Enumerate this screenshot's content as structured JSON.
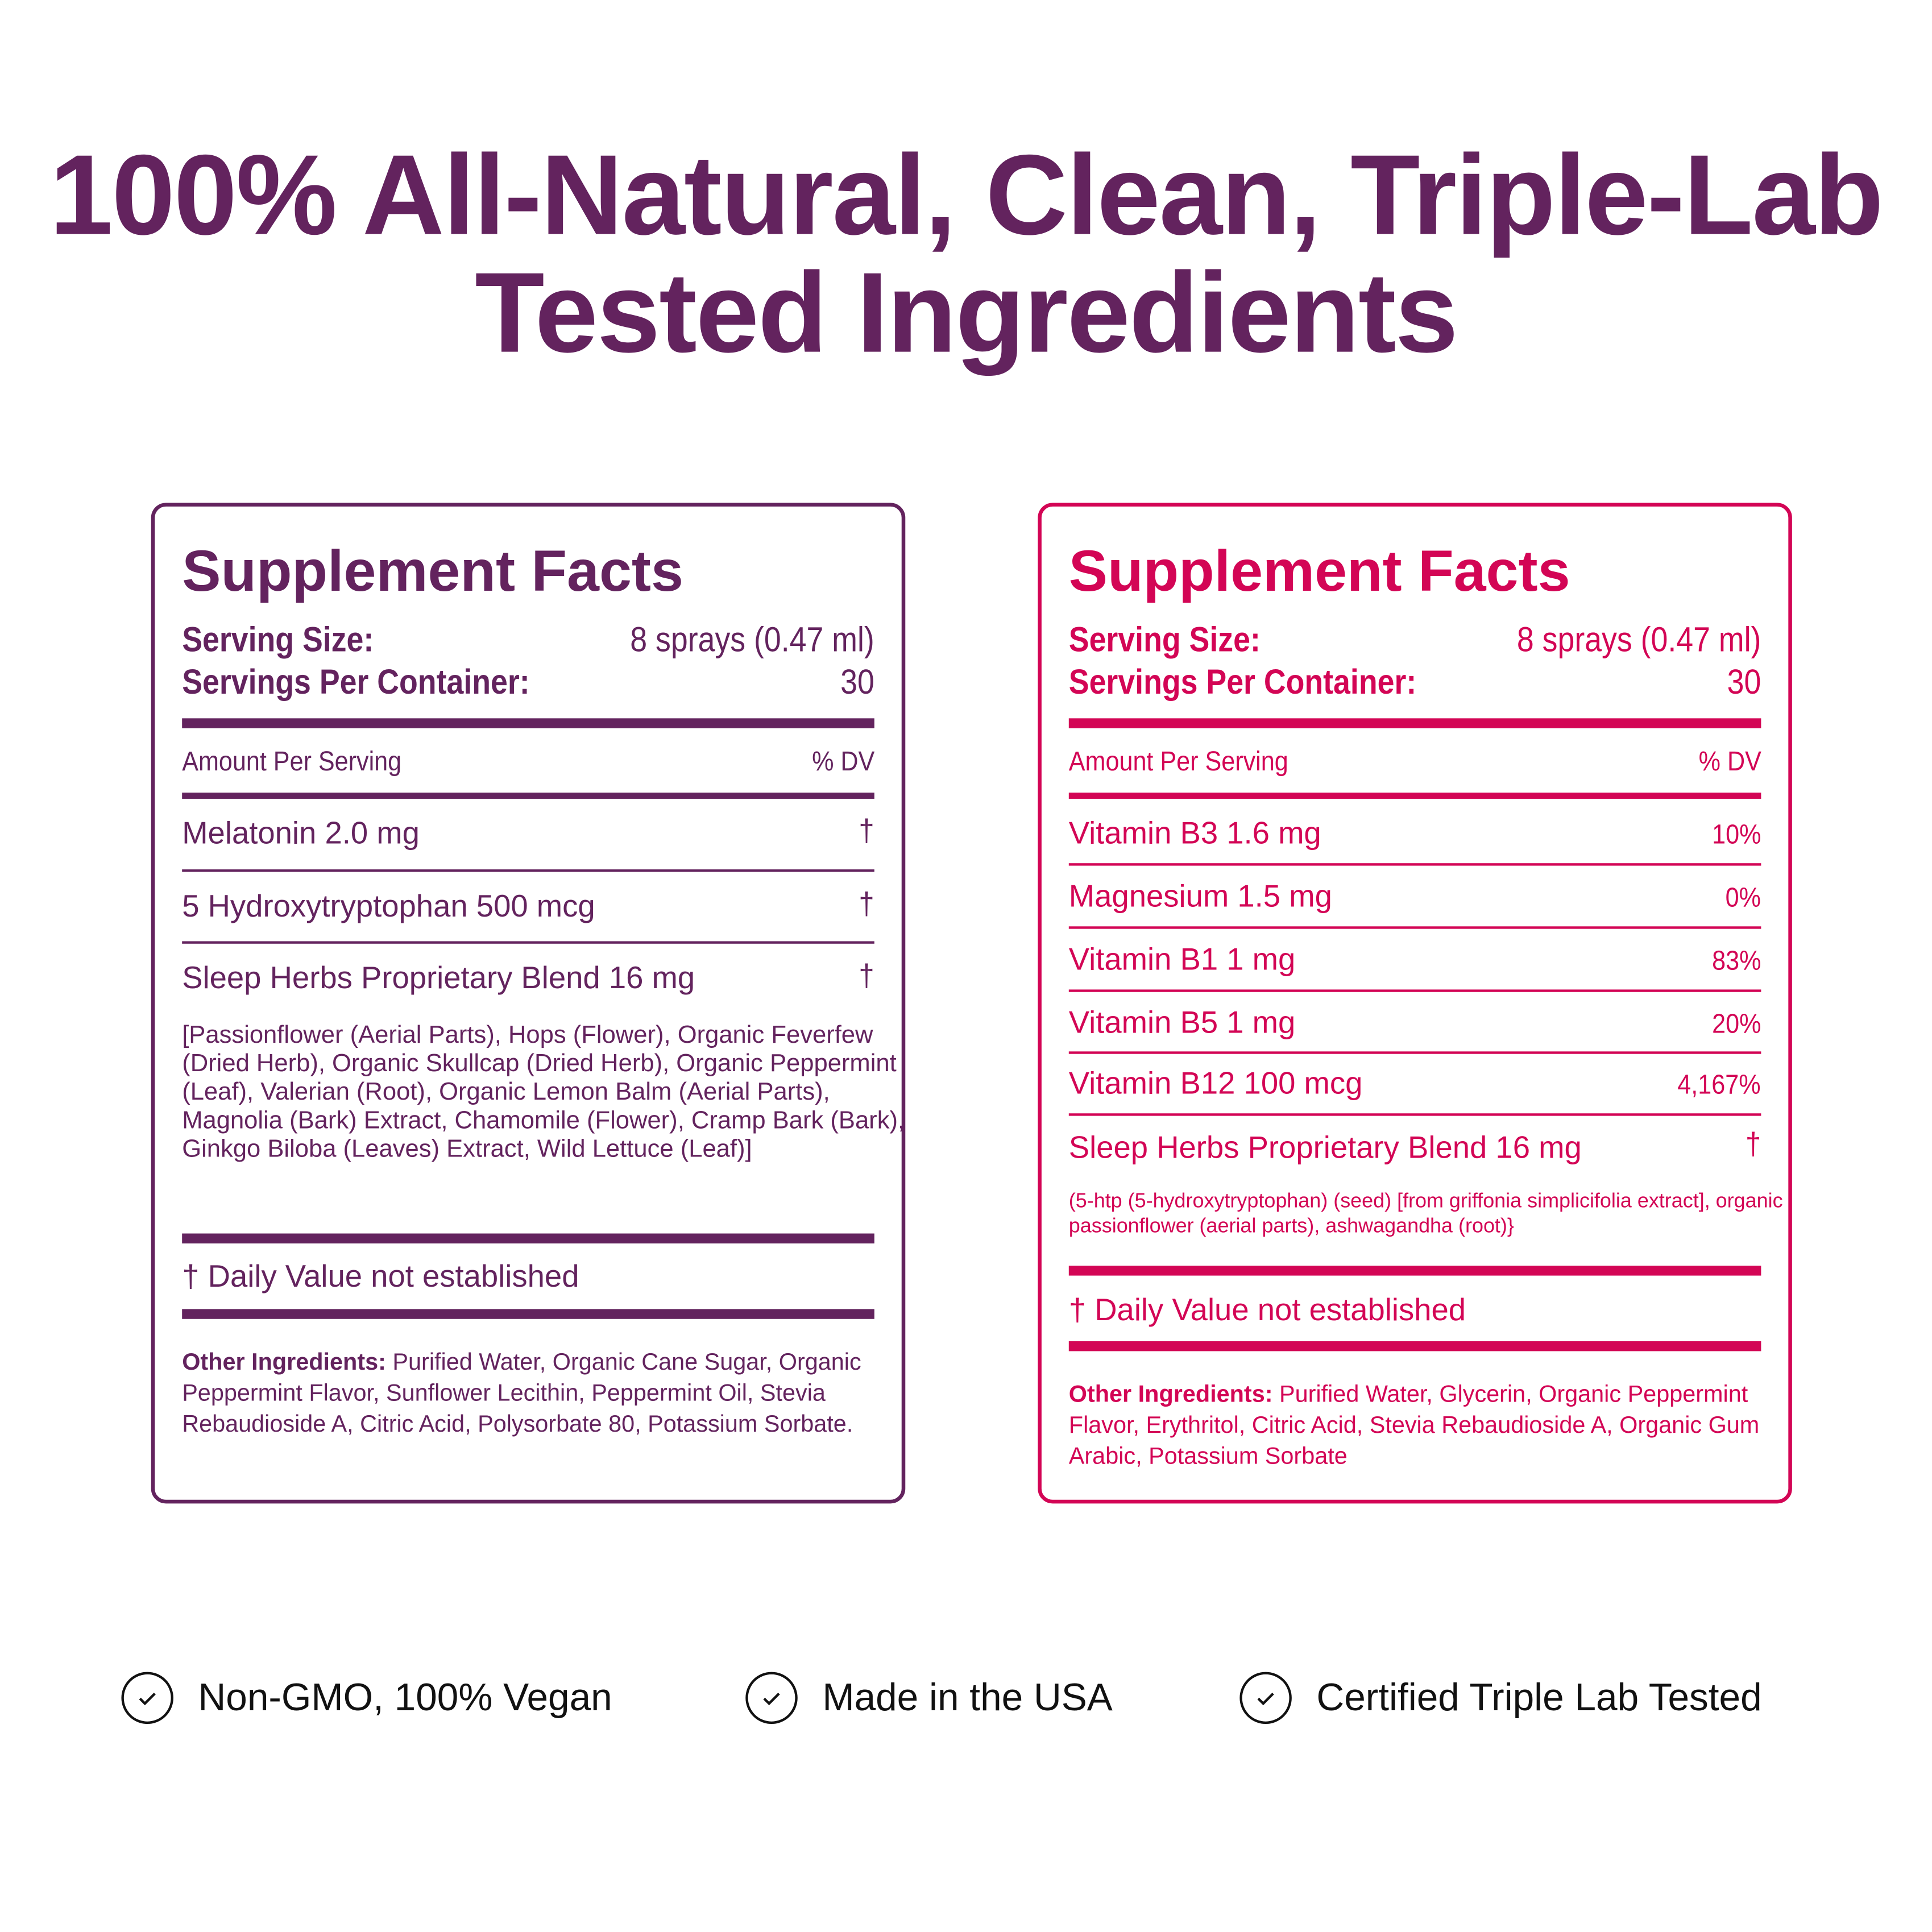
{
  "headline": {
    "line1": "100% All-Natural, Clean, Triple-Lab",
    "line2": "Tested Ingredients"
  },
  "colors": {
    "left_panel": "#63235e",
    "right_panel": "#d30555",
    "headline": "#63235e"
  },
  "left_panel": {
    "title": "Supplement Facts",
    "serving_size_label": "Serving Size:",
    "serving_size_value": "8 sprays (0.47 ml)",
    "servings_label": "Servings Per Container:",
    "servings_value": "30",
    "amount_label": "Amount Per Serving",
    "dv_label": "% DV",
    "rows": [
      {
        "name": "Melatonin 2.0 mg",
        "dv": "†"
      },
      {
        "name": "5 Hydroxytryptophan 500 mcg",
        "dv": "†"
      },
      {
        "name": "Sleep Herbs Proprietary Blend 16 mg",
        "dv": "†"
      }
    ],
    "blend_detail": "[Passionflower (Aerial Parts), Hops (Flower), Organic Feverfew (Dried Herb), Organic Skullcap (Dried Herb), Organic Peppermint (Leaf), Valerian (Root), Organic Lemon Balm (Aerial Parts), Magnolia (Bark) Extract, Chamomile (Flower), Cramp Bark (Bark), Ginkgo Biloba (Leaves) Extract, Wild Lettuce (Leaf)]",
    "dagger": "†",
    "dv_note": "Daily Value not established",
    "other_label": "Other Ingredients:",
    "other_text": " Purified Water, Organic Cane Sugar, Organic Peppermint Flavor, Sunflower Lecithin, Peppermint Oil, Stevia Rebaudioside A, Citric Acid, Polysorbate 80, Potassium Sorbate."
  },
  "right_panel": {
    "title": "Supplement Facts",
    "serving_size_label": "Serving Size:",
    "serving_size_value": "8 sprays (0.47 ml)",
    "servings_label": "Servings Per Container:",
    "servings_value": "30",
    "amount_label": "Amount Per Serving",
    "dv_label": "% DV",
    "rows": [
      {
        "name": "Vitamin B3 1.6 mg",
        "dv": "10%"
      },
      {
        "name": "Magnesium 1.5 mg",
        "dv": "0%"
      },
      {
        "name": "Vitamin B1 1 mg",
        "dv": "83%"
      },
      {
        "name": "Vitamin B5 1 mg",
        "dv": "20%"
      },
      {
        "name": "Vitamin B12 100 mcg",
        "dv": "4,167%"
      },
      {
        "name": "Sleep Herbs Proprietary Blend 16 mg",
        "dv": "†"
      }
    ],
    "blend_detail": "(5-htp (5-hydroxytryptophan) (seed) [from griffonia simplicifolia extract], organic passionflower (aerial parts), ashwagandha (root)}",
    "dagger": "†",
    "dv_note": "Daily Value not established",
    "other_label": "Other Ingredients:",
    "other_text": " Purified Water, Glycerin, Organic Peppermint Flavor, Erythritol, Citric Acid, Stevia Rebaudioside A, Organic Gum Arabic, Potassium Sorbate"
  },
  "badges": [
    {
      "icon": "check-circle-icon",
      "label": "Non-GMO, 100% Vegan"
    },
    {
      "icon": "check-circle-icon",
      "label": "Made in the USA"
    },
    {
      "icon": "check-circle-icon",
      "label": "Certified Triple Lab Tested"
    }
  ]
}
